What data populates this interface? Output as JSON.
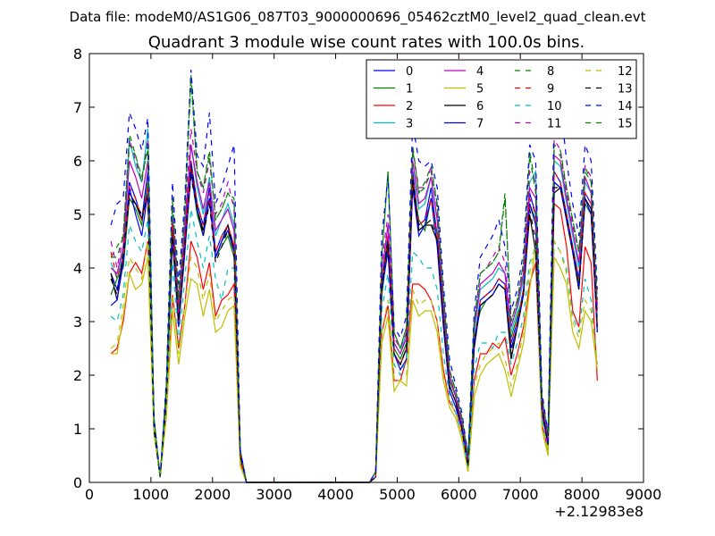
{
  "chart_data": {
    "type": "line",
    "suptitle": "Data file: modeM0/AS1G06_087T03_9000000696_05462cztM0_level2_quad_clean.evt",
    "title": "Quadrant 3 module wise count rates with 100.0s bins.",
    "xlabel": "",
    "ylabel": "",
    "xlim": [
      0,
      9000
    ],
    "ylim": [
      0,
      8
    ],
    "x_ticks": [
      "0",
      "1000",
      "2000",
      "3000",
      "4000",
      "5000",
      "6000",
      "7000",
      "8000",
      "9000"
    ],
    "y_ticks": [
      "0",
      "1",
      "2",
      "3",
      "4",
      "5",
      "6",
      "7",
      "8"
    ],
    "x_offset_label": "+2.12983e8",
    "legend_position": "top-right",
    "grid": false,
    "x": [
      350,
      450,
      550,
      650,
      750,
      850,
      950,
      1050,
      1150,
      1250,
      1350,
      1450,
      1550,
      1650,
      1750,
      1850,
      1950,
      2050,
      2150,
      2250,
      2350,
      2450,
      2550,
      4550,
      4650,
      4750,
      4850,
      4950,
      5050,
      5150,
      5250,
      5350,
      5450,
      5550,
      5650,
      5750,
      5850,
      5950,
      6050,
      6150,
      6250,
      6350,
      6450,
      6550,
      6650,
      6750,
      6850,
      6950,
      7050,
      7150,
      7250,
      7350,
      7450,
      7550,
      7650,
      7750,
      7850,
      7950,
      8050,
      8150,
      8250
    ],
    "series": [
      {
        "name": "0",
        "color": "#0000ff",
        "dash": "solid",
        "values": [
          3.9,
          3.6,
          4.2,
          5.6,
          5.3,
          4.9,
          5.8,
          1.0,
          0.1,
          1.6,
          4.8,
          3.0,
          4.5,
          6.0,
          5.2,
          4.8,
          5.5,
          4.3,
          4.6,
          4.8,
          4.4,
          0.5,
          0,
          0,
          0.1,
          3.7,
          4.6,
          2.4,
          2.2,
          2.5,
          5.8,
          4.8,
          4.9,
          5.5,
          4.6,
          3.0,
          1.8,
          1.5,
          1.0,
          0.4,
          2.6,
          3.4,
          3.5,
          3.6,
          3.8,
          3.7,
          2.6,
          3.0,
          3.6,
          5.4,
          5.0,
          1.4,
          0.8,
          5.8,
          5.6,
          5.0,
          4.4,
          3.8,
          5.4,
          5.2,
          2.9
        ]
      },
      {
        "name": "1",
        "color": "#008000",
        "dash": "solid",
        "values": [
          3.5,
          3.8,
          4.0,
          5.3,
          5.1,
          4.8,
          5.6,
          1.1,
          0.1,
          1.5,
          4.5,
          2.9,
          4.3,
          5.8,
          5.0,
          4.6,
          5.3,
          4.2,
          4.4,
          4.6,
          4.2,
          0.5,
          0,
          0,
          0.1,
          3.5,
          4.4,
          2.5,
          2.3,
          2.6,
          5.6,
          4.9,
          4.7,
          5.3,
          4.6,
          3.1,
          1.9,
          1.6,
          1.1,
          0.4,
          2.7,
          3.2,
          3.4,
          3.5,
          3.7,
          3.6,
          2.7,
          3.1,
          3.5,
          5.2,
          4.9,
          1.5,
          0.8,
          5.6,
          5.5,
          4.9,
          4.3,
          3.7,
          5.2,
          5.0,
          2.8
        ]
      },
      {
        "name": "2",
        "color": "#ff0000",
        "dash": "solid",
        "values": [
          2.4,
          2.5,
          3.0,
          3.9,
          4.1,
          3.9,
          4.5,
          1.0,
          0.1,
          1.3,
          3.5,
          2.5,
          3.3,
          4.5,
          4.2,
          3.6,
          4.1,
          3.1,
          3.4,
          3.5,
          3.7,
          0.4,
          0,
          0,
          0.1,
          2.8,
          3.3,
          1.9,
          1.9,
          2.3,
          3.7,
          3.7,
          3.6,
          3.4,
          3.0,
          2.1,
          1.5,
          1.3,
          0.9,
          0.2,
          1.9,
          2.4,
          2.4,
          2.6,
          2.5,
          2.7,
          2.0,
          2.4,
          2.9,
          3.7,
          4.1,
          1.1,
          0.6,
          5.2,
          5.1,
          4.4,
          3.2,
          2.9,
          4.4,
          4.1,
          1.9
        ]
      },
      {
        "name": "3",
        "color": "#00bfbf",
        "dash": "solid",
        "values": [
          4.1,
          3.8,
          4.3,
          6.4,
          5.9,
          5.6,
          6.6,
          1.2,
          0.1,
          1.8,
          5.0,
          3.2,
          4.8,
          6.3,
          5.5,
          5.0,
          5.7,
          4.6,
          4.9,
          5.2,
          4.8,
          0.6,
          0,
          0,
          0.1,
          3.9,
          4.8,
          2.6,
          2.4,
          2.8,
          6.0,
          5.1,
          5.2,
          5.7,
          4.9,
          3.3,
          2.0,
          1.6,
          1.1,
          0.4,
          2.8,
          3.6,
          3.7,
          3.8,
          4.0,
          3.9,
          2.8,
          3.2,
          3.8,
          5.6,
          5.8,
          1.5,
          0.8,
          6.0,
          5.9,
          5.2,
          4.6,
          4.0,
          5.6,
          5.4,
          3.1
        ]
      },
      {
        "name": "4",
        "color": "#bf00bf",
        "dash": "solid",
        "values": [
          4.0,
          3.9,
          4.4,
          6.0,
          5.7,
          5.3,
          6.0,
          1.1,
          0.1,
          1.7,
          4.9,
          3.3,
          4.7,
          6.3,
          5.6,
          5.1,
          5.6,
          4.7,
          4.9,
          5.1,
          4.7,
          0.6,
          0,
          0,
          0.1,
          3.9,
          4.8,
          2.6,
          2.4,
          2.7,
          6.0,
          5.2,
          5.3,
          5.7,
          4.9,
          3.3,
          2.0,
          1.6,
          1.1,
          0.4,
          2.9,
          3.7,
          3.8,
          3.9,
          4.1,
          3.9,
          2.9,
          3.3,
          3.9,
          5.5,
          5.3,
          1.5,
          0.8,
          6.1,
          6.0,
          5.3,
          4.7,
          4.1,
          5.7,
          5.4,
          3.2
        ]
      },
      {
        "name": "5",
        "color": "#bfbf00",
        "dash": "solid",
        "values": [
          2.4,
          2.4,
          3.1,
          3.9,
          3.6,
          3.7,
          4.2,
          0.9,
          0.1,
          1.2,
          3.2,
          2.2,
          3.1,
          3.8,
          3.7,
          3.1,
          3.6,
          2.8,
          2.9,
          3.2,
          3.3,
          0.3,
          0,
          0,
          0.1,
          2.6,
          3.1,
          1.7,
          1.9,
          1.8,
          3.4,
          3.1,
          3.2,
          3.2,
          2.8,
          1.9,
          1.4,
          1.2,
          0.8,
          0.2,
          1.6,
          2.0,
          2.2,
          2.3,
          2.4,
          2.1,
          1.6,
          2.1,
          2.6,
          3.6,
          4.4,
          1.0,
          0.5,
          4.2,
          4.0,
          3.7,
          2.8,
          2.5,
          3.2,
          3.0,
          2.1
        ]
      },
      {
        "name": "6",
        "color": "#000000",
        "dash": "solid",
        "values": [
          3.9,
          3.4,
          4.2,
          5.4,
          5.2,
          4.9,
          5.4,
          1.0,
          0.1,
          1.6,
          4.7,
          3.0,
          4.4,
          5.9,
          5.1,
          4.7,
          5.3,
          4.2,
          4.5,
          4.8,
          4.3,
          0.5,
          0,
          0,
          0.1,
          3.7,
          4.5,
          2.4,
          2.2,
          2.5,
          5.7,
          4.7,
          4.8,
          4.8,
          4.5,
          3.0,
          1.8,
          1.5,
          1.0,
          0.3,
          2.6,
          3.3,
          3.4,
          3.5,
          3.7,
          3.6,
          2.3,
          2.9,
          3.5,
          5.0,
          4.3,
          1.4,
          0.7,
          5.4,
          5.5,
          4.9,
          4.3,
          3.6,
          5.3,
          5.1,
          2.9
        ]
      },
      {
        "name": "7",
        "color": "#0000ff",
        "dash": "solid",
        "values": [
          3.3,
          3.4,
          4.1,
          5.5,
          5.0,
          4.6,
          5.4,
          1.0,
          0.1,
          1.5,
          4.6,
          2.9,
          4.3,
          5.8,
          5.1,
          4.6,
          5.3,
          4.2,
          4.5,
          4.7,
          4.3,
          0.5,
          0,
          0,
          0.1,
          3.6,
          4.3,
          2.4,
          2.1,
          2.3,
          5.5,
          4.6,
          4.8,
          5.3,
          4.4,
          2.9,
          1.7,
          1.4,
          1.0,
          0.3,
          2.5,
          3.3,
          3.4,
          3.5,
          3.7,
          3.6,
          2.5,
          2.9,
          3.5,
          5.2,
          4.8,
          1.3,
          0.7,
          5.6,
          5.5,
          4.9,
          4.3,
          3.6,
          5.3,
          5.0,
          2.8
        ]
      },
      {
        "name": "8",
        "color": "#008000",
        "dash": "dashed",
        "values": [
          4.2,
          4.4,
          4.6,
          6.5,
          6.1,
          5.7,
          6.2,
          1.2,
          0.1,
          1.8,
          5.2,
          3.4,
          5.0,
          7.5,
          5.8,
          5.5,
          6.2,
          4.9,
          5.1,
          5.4,
          5.2,
          0.6,
          0,
          0,
          0.2,
          4.2,
          5.8,
          2.8,
          2.5,
          2.9,
          6.3,
          5.4,
          5.6,
          5.9,
          5.2,
          3.5,
          2.1,
          1.7,
          1.2,
          0.5,
          3.0,
          3.9,
          4.0,
          4.1,
          4.3,
          5.4,
          3.0,
          3.4,
          4.1,
          6.2,
          5.5,
          1.6,
          0.9,
          6.3,
          6.2,
          5.5,
          4.9,
          4.3,
          5.9,
          5.6,
          3.4
        ]
      },
      {
        "name": "9",
        "color": "#ff0000",
        "dash": "dashed",
        "values": [
          4.3,
          3.8,
          4.2,
          5.5,
          5.3,
          4.9,
          5.5,
          1.0,
          0.1,
          1.6,
          4.8,
          3.0,
          4.5,
          6.0,
          5.2,
          4.8,
          5.4,
          4.3,
          4.6,
          4.8,
          4.4,
          0.5,
          0,
          0,
          0.1,
          3.7,
          4.6,
          2.4,
          2.2,
          2.5,
          5.7,
          4.8,
          4.9,
          5.3,
          4.6,
          3.0,
          1.8,
          1.5,
          1.0,
          0.4,
          2.6,
          3.4,
          3.5,
          3.6,
          3.8,
          3.7,
          2.6,
          3.0,
          3.6,
          5.3,
          5.0,
          1.4,
          0.8,
          5.8,
          5.6,
          5.0,
          4.4,
          3.8,
          5.4,
          5.2,
          2.9
        ]
      },
      {
        "name": "10",
        "color": "#00bfbf",
        "dash": "dashed",
        "values": [
          3.1,
          3.0,
          3.5,
          4.8,
          4.5,
          4.3,
          4.9,
          1.0,
          0.1,
          1.4,
          4.1,
          2.6,
          3.8,
          5.1,
          4.5,
          4.0,
          4.6,
          3.8,
          3.4,
          4.0,
          4.0,
          0.4,
          0,
          0,
          0.1,
          3.2,
          3.9,
          2.2,
          2.0,
          2.3,
          4.3,
          4.2,
          4.0,
          4.0,
          3.6,
          2.4,
          1.6,
          1.3,
          0.9,
          0.3,
          2.1,
          2.6,
          2.6,
          2.5,
          2.8,
          2.8,
          2.2,
          2.6,
          3.1,
          4.1,
          4.4,
          1.2,
          0.6,
          4.5,
          4.3,
          4.0,
          3.1,
          2.8,
          3.8,
          3.4,
          2.2
        ]
      },
      {
        "name": "11",
        "color": "#bf00bf",
        "dash": "dashed",
        "values": [
          4.5,
          4.0,
          4.6,
          6.4,
          6.0,
          5.6,
          6.4,
          1.2,
          0.1,
          1.8,
          5.2,
          3.5,
          5.0,
          6.6,
          5.8,
          5.4,
          6.0,
          5.0,
          5.2,
          5.6,
          5.1,
          0.6,
          0,
          0,
          0.2,
          4.1,
          5.0,
          2.7,
          2.5,
          2.8,
          6.2,
          5.5,
          5.5,
          5.9,
          5.1,
          3.4,
          2.1,
          1.7,
          1.2,
          0.4,
          3.0,
          3.9,
          4.0,
          4.2,
          4.4,
          4.1,
          3.0,
          3.4,
          4.0,
          5.8,
          5.6,
          1.6,
          0.8,
          6.4,
          6.2,
          5.4,
          4.8,
          4.3,
          5.9,
          5.7,
          3.3
        ]
      },
      {
        "name": "12",
        "color": "#bfbf00",
        "dash": "dashed",
        "values": [
          2.5,
          2.6,
          3.3,
          4.2,
          4.0,
          3.8,
          4.5,
          1.0,
          0.1,
          1.3,
          3.5,
          2.4,
          3.3,
          4.2,
          4.0,
          3.4,
          3.9,
          3.0,
          3.2,
          3.4,
          3.5,
          0.4,
          0,
          0,
          0.1,
          2.8,
          3.4,
          1.9,
          1.9,
          2.0,
          3.6,
          3.3,
          3.4,
          3.4,
          3.0,
          2.0,
          1.5,
          1.3,
          0.9,
          0.2,
          1.8,
          2.2,
          2.4,
          2.5,
          2.6,
          2.3,
          1.8,
          2.2,
          2.8,
          3.9,
          4.5,
          1.1,
          0.6,
          4.5,
          4.3,
          3.9,
          3.0,
          2.7,
          3.4,
          3.2,
          2.2
        ]
      },
      {
        "name": "13",
        "color": "#000000",
        "dash": "dashed",
        "values": [
          3.8,
          3.5,
          4.3,
          5.3,
          5.2,
          5.0,
          5.3,
          1.0,
          0.1,
          1.6,
          4.6,
          3.0,
          4.4,
          5.7,
          5.1,
          4.6,
          5.2,
          4.1,
          4.4,
          4.7,
          4.3,
          0.5,
          0,
          0,
          0.1,
          3.7,
          4.5,
          2.4,
          2.2,
          2.5,
          5.6,
          4.7,
          4.8,
          4.9,
          4.5,
          3.0,
          1.8,
          1.5,
          1.0,
          0.3,
          2.6,
          3.3,
          3.4,
          3.5,
          3.7,
          3.6,
          2.4,
          2.9,
          3.5,
          5.1,
          4.5,
          1.4,
          0.7,
          5.5,
          5.5,
          4.9,
          4.3,
          3.6,
          5.3,
          5.1,
          2.9
        ]
      },
      {
        "name": "14",
        "color": "#0000ff",
        "dash": "dashed",
        "values": [
          4.8,
          5.2,
          5.3,
          6.9,
          6.6,
          6.2,
          6.8,
          1.2,
          0.1,
          1.9,
          5.6,
          3.7,
          5.3,
          7.7,
          6.1,
          5.9,
          6.9,
          5.2,
          5.5,
          5.9,
          6.3,
          0.6,
          0,
          0,
          0.2,
          4.6,
          5.7,
          2.9,
          2.7,
          3.1,
          6.7,
          6.0,
          5.9,
          6.0,
          5.5,
          3.7,
          2.3,
          1.8,
          1.3,
          0.5,
          3.2,
          4.2,
          4.4,
          4.6,
          4.9,
          4.4,
          3.2,
          3.6,
          4.3,
          6.3,
          6.0,
          1.7,
          0.9,
          6.9,
          7.1,
          6.0,
          5.2,
          4.6,
          6.3,
          6.0,
          3.6
        ]
      },
      {
        "name": "15",
        "color": "#008000",
        "dash": "dashed",
        "values": [
          4.2,
          4.2,
          4.6,
          6.3,
          6.1,
          5.6,
          6.3,
          1.2,
          0.1,
          1.8,
          5.3,
          3.4,
          5.1,
          7.6,
          5.8,
          5.5,
          6.1,
          4.9,
          5.1,
          5.4,
          5.3,
          0.6,
          0,
          0,
          0.2,
          4.2,
          5.8,
          2.8,
          2.5,
          2.9,
          6.2,
          5.4,
          5.5,
          5.8,
          5.2,
          3.5,
          2.1,
          1.7,
          1.2,
          0.5,
          3.0,
          3.9,
          4.0,
          4.1,
          4.3,
          5.3,
          3.0,
          3.4,
          4.1,
          6.1,
          5.4,
          1.6,
          0.9,
          6.2,
          6.1,
          5.5,
          4.9,
          4.3,
          5.8,
          5.6,
          3.4
        ]
      }
    ]
  }
}
